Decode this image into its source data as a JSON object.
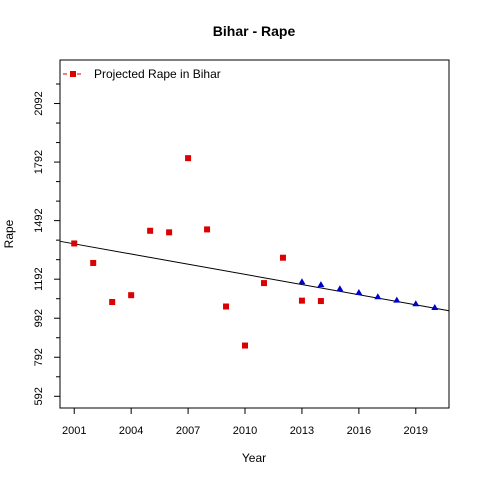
{
  "chart_data": {
    "type": "scatter",
    "title": "Bihar  -  Rape",
    "xlabel": "Year",
    "ylabel": "Rape",
    "xlim": [
      2000.25,
      2020.75
    ],
    "ylim": [
      532,
      2315
    ],
    "x_ticks": [
      2001,
      2004,
      2007,
      2010,
      2013,
      2016,
      2019
    ],
    "y_ticks": [
      592,
      792,
      992,
      1192,
      1492,
      1792,
      2092
    ],
    "y_minor_ticks": [
      692,
      892,
      1092,
      1292,
      1392,
      1592,
      1692,
      1892,
      1992,
      2192
    ],
    "legend": {
      "position": "top-left",
      "label": "Projected Rape  in  Bihar"
    },
    "colors": {
      "actual": "#dd0000",
      "projected": "#0000cc",
      "trend": "#000000",
      "axis": "#000000"
    },
    "series": [
      {
        "name": "Projected Rape  in  Bihar",
        "marker": "square",
        "color": "#dd0000",
        "x": [
          2001,
          2002,
          2003,
          2004,
          2005,
          2006,
          2007,
          2008,
          2009,
          2010,
          2011,
          2012,
          2013,
          2014
        ],
        "y": [
          1375,
          1275,
          1075,
          1110,
          1440,
          1432,
          1812,
          1447,
          1052,
          852,
          1172,
          1302,
          1082,
          1080
        ]
      },
      {
        "marker": "triangle",
        "color": "#0000cc",
        "x": [
          2013,
          2014,
          2015,
          2016,
          2017,
          2018,
          2019,
          2020
        ],
        "y": [
          1179,
          1164,
          1143,
          1124,
          1102,
          1085,
          1066,
          1047
        ]
      },
      {
        "type": "line",
        "color": "#000000",
        "x": [
          2000.25,
          2020.75
        ],
        "y": [
          1386,
          1030
        ]
      }
    ]
  }
}
